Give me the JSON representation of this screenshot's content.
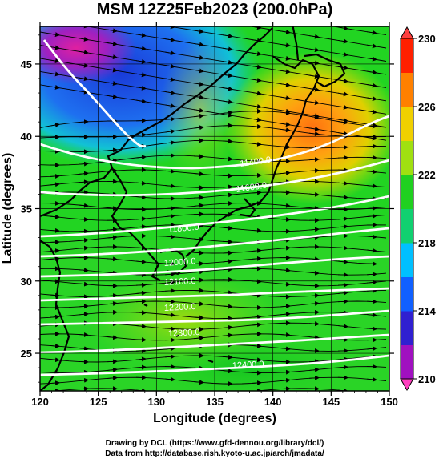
{
  "title": "MSM 12Z25Feb2023 (200.0hPa)",
  "axes": {
    "xlabel": "Longitude (degrees)",
    "ylabel": "Latitude  (degrees)",
    "xticks": [
      "120",
      "125",
      "130",
      "135",
      "140",
      "145",
      "150"
    ],
    "yticks": [
      "25",
      "30",
      "35",
      "40",
      "45"
    ]
  },
  "colorbar": {
    "labels": [
      "230",
      "226",
      "222",
      "218",
      "214",
      "210"
    ],
    "colors": [
      "#a010c0",
      "#3020d0",
      "#1060ff",
      "#00c0ff",
      "#10d070",
      "#20d020",
      "#a0e010",
      "#f0d000",
      "#ff8000",
      "#ff2000"
    ]
  },
  "contours": [
    {
      "label": "11400.0"
    },
    {
      "label": "11600.0"
    },
    {
      "label": "11800.0"
    },
    {
      "label": "12000.0"
    },
    {
      "label": "12100.0"
    },
    {
      "label": "12200.0"
    },
    {
      "label": "12300.0"
    },
    {
      "label": "12400.0"
    }
  ],
  "credits": {
    "line1": "Drawing by DCL (https://www.gfd-dennou.org/library/dcl/)",
    "line2": "Data from http://database.rish.kyoto-u.ac.jp/arch/jmadata/"
  },
  "chart_data": {
    "type": "heatmap",
    "title": "MSM 12Z25Feb2023 (200.0hPa)",
    "xlabel": "Longitude (degrees)",
    "ylabel": "Latitude  (degrees)",
    "xlim": [
      120,
      150
    ],
    "ylim": [
      22.4,
      47.6
    ],
    "colorbar_range": [
      210,
      230
    ],
    "colorbar_ticks": [
      210,
      214,
      218,
      222,
      226,
      230
    ],
    "contour_values": [
      11400,
      11600,
      11800,
      12000,
      12100,
      12200,
      12300,
      12400
    ],
    "grid": true
  }
}
